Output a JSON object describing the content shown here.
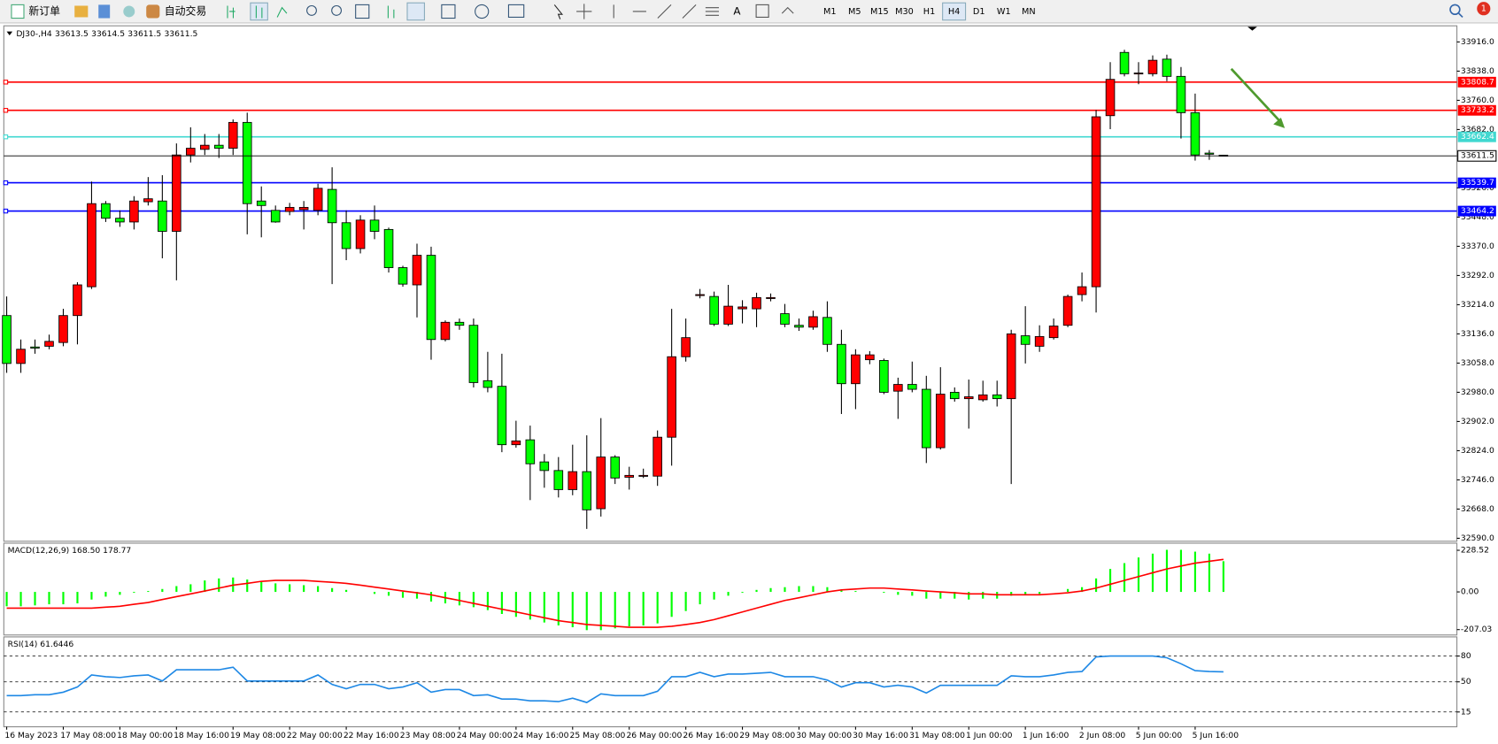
{
  "toolbar": {
    "new_order": "新订单",
    "auto_trading": "自动交易",
    "timeframes": [
      "M1",
      "M5",
      "M15",
      "M30",
      "H1",
      "H4",
      "D1",
      "W1",
      "MN"
    ],
    "active_timeframe": "H4",
    "notifications": "1"
  },
  "chart_data": [
    {
      "type": "candlestick",
      "symbol": "DJ30-,H4",
      "up_color": "#ff0000",
      "down_color": "#00ff00",
      "categories": [
        "16 May 2023",
        null,
        null,
        null,
        "17 May 08:00",
        null,
        null,
        null,
        "18 May 00:00",
        null,
        null,
        null,
        "18 May 16:00",
        null,
        null,
        null,
        "19 May 08:00",
        null,
        null,
        null,
        "22 May 00:00",
        null,
        null,
        null,
        "22 May 16:00",
        null,
        null,
        null,
        "23 May 08:00",
        null,
        null,
        null,
        "24 May 00:00",
        null,
        null,
        null,
        "24 May 16:00",
        null,
        null,
        null,
        "25 May 08:00",
        null,
        null,
        null,
        "26 May 00:00",
        null,
        null,
        null,
        "26 May 16:00",
        null,
        null,
        null,
        "29 May 08:00",
        null,
        null,
        null,
        "30 May 00:00",
        null,
        null,
        null,
        "30 May 16:00",
        null,
        null,
        null,
        "31 May 08:00",
        null,
        null,
        null,
        "1 Jun 00:00",
        null,
        null,
        null,
        "1 Jun 16:00",
        null,
        null,
        null,
        "2 Jun 08:00",
        null,
        null,
        null,
        "5 Jun 00:00",
        null,
        null,
        null,
        "5 Jun 16:00",
        null,
        null
      ],
      "open": [
        33185,
        33057,
        33101,
        33103,
        33113,
        33185,
        33262,
        33484,
        33445,
        33435,
        33489,
        33491,
        33410,
        33614,
        33629,
        33640,
        33632,
        33701,
        33491,
        33466,
        33463,
        33468,
        33466,
        33522,
        33433,
        33364,
        33440,
        33415,
        33313,
        33267,
        33346,
        33121,
        33167,
        33159,
        33011,
        32996,
        32840,
        32853,
        32794,
        32771,
        32720,
        32768,
        32669,
        32807,
        32753,
        32756,
        32756,
        32860,
        33075,
        33239,
        33236,
        33162,
        33203,
        33203,
        33231,
        33190,
        33159,
        33154,
        33180,
        33108,
        33003,
        33067,
        33065,
        32983,
        33001,
        32988,
        32832,
        32980,
        32963,
        32960,
        32973,
        32963,
        33131,
        33103,
        33126,
        33159,
        33241,
        33262,
        33719,
        33888,
        33831,
        33831,
        33870,
        33824,
        33727,
        33619,
        33613.5
      ],
      "high": [
        33236,
        33121,
        33121,
        33134,
        33203,
        33274,
        33543,
        33491,
        33466,
        33504,
        33555,
        33560,
        33645,
        33688,
        33670,
        33670,
        33709,
        33727,
        33530,
        33479,
        33486,
        33491,
        33537,
        33581,
        33466,
        33453,
        33479,
        33420,
        33318,
        33377,
        33369,
        33172,
        33177,
        33177,
        33088,
        33083,
        32904,
        32891,
        32815,
        32807,
        32840,
        32865,
        32911,
        32812,
        32781,
        32776,
        32878,
        33203,
        33177,
        33256,
        33249,
        33267,
        33226,
        33246,
        33244,
        33216,
        33177,
        33198,
        33223,
        33147,
        33095,
        33090,
        33070,
        33019,
        33062,
        33024,
        33047,
        32993,
        33014,
        33011,
        33011,
        33147,
        33210,
        33159,
        33177,
        33241,
        33300,
        33734,
        33862,
        33895,
        33862,
        33880,
        33882,
        33849,
        33778,
        33627,
        33614.5
      ],
      "low": [
        33032,
        33032,
        33083,
        33095,
        33103,
        33108,
        33256,
        33435,
        33422,
        33415,
        33479,
        33338,
        33279,
        33594,
        33614,
        33606,
        33614,
        33402,
        33394,
        33433,
        33453,
        33415,
        33453,
        33269,
        33333,
        33351,
        33389,
        33300,
        33262,
        33180,
        33067,
        33116,
        33147,
        32993,
        32980,
        32820,
        32832,
        32692,
        32725,
        32699,
        32705,
        32615,
        32648,
        32735,
        32720,
        32751,
        32730,
        32784,
        33062,
        33231,
        33157,
        33157,
        33164,
        33154,
        33223,
        33154,
        33144,
        33147,
        33088,
        32922,
        32935,
        33055,
        32975,
        32909,
        32980,
        32791,
        32827,
        32955,
        32883,
        32955,
        32942,
        32735,
        33057,
        33088,
        33121,
        33154,
        33223,
        33193,
        33683,
        33824,
        33803,
        33824,
        33811,
        33658,
        33599,
        33601,
        33611.5
      ],
      "close": [
        33057,
        33095,
        33098,
        33116,
        33185,
        33267,
        33484,
        33445,
        33435,
        33491,
        33497,
        33410,
        33614,
        33632,
        33640,
        33632,
        33701,
        33484,
        33479,
        33435,
        33474,
        33474,
        33525,
        33433,
        33364,
        33440,
        33410,
        33313,
        33269,
        33346,
        33121,
        33167,
        33159,
        33006,
        32993,
        32840,
        32850,
        32789,
        32771,
        32720,
        32768,
        32666,
        32807,
        32751,
        32758,
        32758,
        32860,
        33075,
        33126,
        33241,
        33162,
        33210,
        33208,
        33233,
        33233,
        33162,
        33154,
        33182,
        33108,
        33003,
        33080,
        33080,
        32980,
        33001,
        32988,
        32832,
        32975,
        32963,
        32968,
        32973,
        32963,
        33136,
        33108,
        33129,
        33157,
        33236,
        33262,
        33716,
        33816,
        33831,
        33833,
        33867,
        33824,
        33727,
        33614,
        33616,
        33611.5
      ],
      "ylim": [
        32582,
        33956.5
      ],
      "yticks": [
        {
          "value": 33916,
          "label": "33916.0"
        },
        {
          "value": 33838,
          "label": "33838.0"
        },
        {
          "value": 33760,
          "label": "33760.0"
        },
        {
          "value": 33682,
          "label": "33682.0"
        },
        {
          "value": 33526,
          "label": "33526.0"
        },
        {
          "value": 33448,
          "label": "33448.0"
        },
        {
          "value": 33370,
          "label": "33370.0"
        },
        {
          "value": 33292,
          "label": "33292.0"
        },
        {
          "value": 33214,
          "label": "33214.0"
        },
        {
          "value": 33136,
          "label": "33136.0"
        },
        {
          "value": 33058,
          "label": "33058.0"
        },
        {
          "value": 32980,
          "label": "32980.0"
        },
        {
          "value": 32902,
          "label": "32902.0"
        },
        {
          "value": 32824,
          "label": "32824.0"
        },
        {
          "value": 32746,
          "label": "32746.0"
        },
        {
          "value": 32668,
          "label": "32668.0"
        },
        {
          "value": 32590,
          "label": "32590.0"
        }
      ],
      "levels": [
        {
          "value": 33808.7,
          "color": "#ff0000"
        },
        {
          "value": 33733.2,
          "color": "#ff0000"
        },
        {
          "value": 33662.4,
          "color": "#40d8d0"
        },
        {
          "value": 33539.7,
          "color": "#0000ff"
        },
        {
          "value": 33464.2,
          "color": "#0000ff"
        }
      ]
    },
    {
      "type": "macd",
      "title": "MACD(12,26,9) 168.50 178.77",
      "histogram": {
        "color": "#00ff00",
        "values": [
          -79,
          -79,
          -74,
          -68,
          -68,
          -63,
          -42,
          -26,
          -16,
          -5,
          5,
          16,
          32,
          42,
          63,
          74,
          79,
          68,
          58,
          47,
          42,
          37,
          32,
          21,
          11,
          0,
          -11,
          -21,
          -32,
          -37,
          -53,
          -63,
          -74,
          -84,
          -100,
          -121,
          -137,
          -152,
          -168,
          -184,
          -194,
          -210,
          -210,
          -200,
          -189,
          -184,
          -173,
          -137,
          -105,
          -68,
          -42,
          -21,
          -5,
          11,
          21,
          26,
          32,
          32,
          26,
          11,
          5,
          0,
          -5,
          -16,
          -21,
          -37,
          -37,
          -37,
          -42,
          -37,
          -37,
          -21,
          -16,
          -11,
          0,
          16,
          26,
          74,
          126,
          158,
          189,
          210,
          231,
          231,
          221,
          210,
          168.5
        ]
      },
      "signal": {
        "color": "#ff0000",
        "values": [
          -89,
          -89,
          -89,
          -89,
          -89,
          -89,
          -89,
          -84,
          -79,
          -68,
          -58,
          -42,
          -26,
          -11,
          5,
          21,
          37,
          47,
          58,
          63,
          63,
          63,
          58,
          53,
          47,
          37,
          26,
          16,
          5,
          -5,
          -16,
          -32,
          -47,
          -63,
          -79,
          -95,
          -110,
          -126,
          -142,
          -158,
          -168,
          -179,
          -184,
          -189,
          -194,
          -194,
          -194,
          -189,
          -179,
          -168,
          -152,
          -131,
          -110,
          -89,
          -68,
          -47,
          -32,
          -16,
          0,
          11,
          16,
          21,
          21,
          16,
          11,
          5,
          0,
          -5,
          -11,
          -11,
          -16,
          -16,
          -16,
          -16,
          -11,
          -5,
          5,
          21,
          42,
          63,
          84,
          105,
          126,
          142,
          158,
          168,
          178.77
        ]
      },
      "ylim": [
        -226,
        257
      ],
      "yticks": [
        228.52,
        {
          "value": 0,
          "label": "0.00"
        },
        -207.03
      ]
    },
    {
      "type": "rsi",
      "title": "RSI(14) 61.6446",
      "color": "#1e88e5",
      "values": [
        34,
        34,
        35,
        35,
        38,
        44,
        58,
        56,
        55,
        57,
        58,
        51,
        64,
        64,
        64,
        64,
        67,
        51,
        51,
        51,
        51,
        51,
        58,
        47,
        42,
        47,
        47,
        42,
        44,
        49,
        38,
        41,
        41,
        34,
        35,
        30,
        30,
        28,
        28,
        27,
        31,
        26,
        36,
        34,
        34,
        34,
        39,
        56,
        56,
        61,
        56,
        59,
        59,
        60,
        61,
        56,
        56,
        56,
        52,
        44,
        49,
        49,
        44,
        46,
        44,
        37,
        46,
        46,
        46,
        46,
        46,
        57,
        56,
        56,
        58,
        61,
        62,
        79,
        80,
        80,
        80,
        80,
        78,
        71,
        63,
        62,
        61.6446
      ],
      "ylim": [
        0,
        100
      ],
      "yticks": [
        80,
        50,
        15
      ]
    }
  ]
}
